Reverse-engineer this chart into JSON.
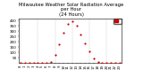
{
  "title": "Milwaukee Weather Solar Radiation Average\nper Hour\n(24 Hours)",
  "x_hours": [
    0,
    1,
    2,
    3,
    4,
    5,
    6,
    7,
    8,
    9,
    10,
    11,
    12,
    13,
    14,
    15,
    16,
    17,
    18,
    19,
    20,
    21,
    22,
    23
  ],
  "solar_values": [
    0,
    0,
    0,
    0,
    0,
    0,
    0,
    15,
    75,
    175,
    285,
    365,
    395,
    355,
    270,
    190,
    110,
    45,
    8,
    0,
    0,
    0,
    0,
    0
  ],
  "dot_color": "#cc0000",
  "bg_color": "#ffffff",
  "grid_color": "#bbbbbb",
  "legend_color": "#cc0000",
  "ylim": [
    0,
    420
  ],
  "xlim": [
    -0.5,
    23.5
  ],
  "ylabel_ticks": [
    50,
    100,
    150,
    200,
    250,
    300,
    350,
    400
  ],
  "xlabel_ticks": [
    0,
    1,
    2,
    3,
    4,
    5,
    6,
    7,
    8,
    9,
    10,
    11,
    12,
    13,
    14,
    15,
    16,
    17,
    18,
    19,
    20,
    21,
    22,
    23
  ],
  "dot_size": 2.5,
  "title_fontsize": 3.8,
  "tick_fontsize": 3.0
}
